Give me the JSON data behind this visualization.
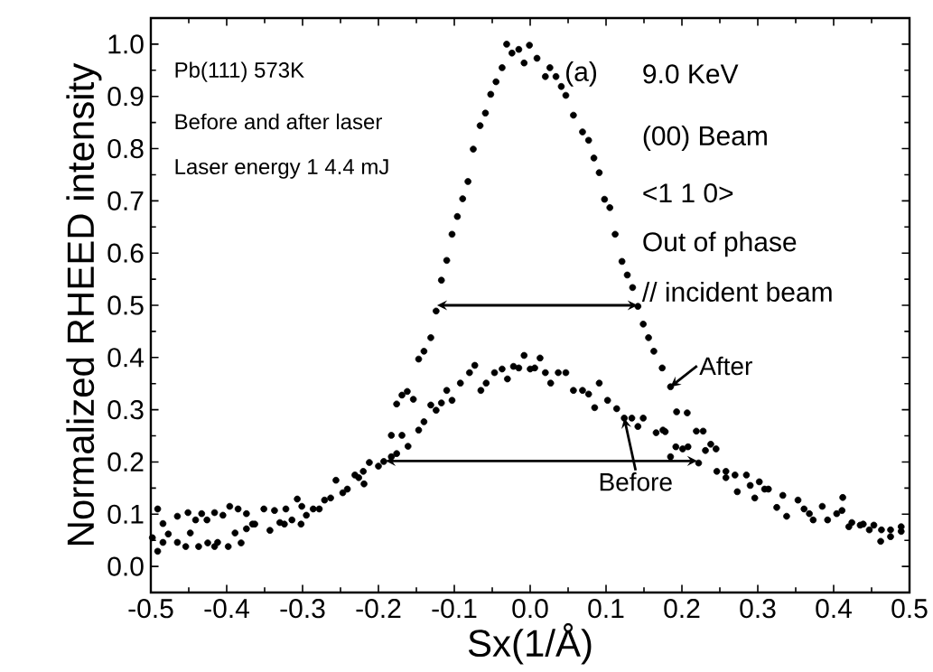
{
  "chart_data": {
    "type": "scatter",
    "xlabel": "Sx(1/Å)",
    "ylabel": "Normalized RHEED intensity",
    "xlim": [
      -0.5,
      0.5
    ],
    "ylim": [
      -0.05,
      1.05
    ],
    "xticks": [
      {
        "value": -0.5,
        "label": "-0.5"
      },
      {
        "value": -0.4,
        "label": "-0.4"
      },
      {
        "value": -0.3,
        "label": "-0.3"
      },
      {
        "value": -0.2,
        "label": "-0.2"
      },
      {
        "value": -0.1,
        "label": "-0.1"
      },
      {
        "value": 0,
        "label": "0.0"
      },
      {
        "value": 0.1,
        "label": "0.1"
      },
      {
        "value": 0.2,
        "label": "0.2"
      },
      {
        "value": 0.3,
        "label": "0.3"
      },
      {
        "value": 0.4,
        "label": "0.4"
      },
      {
        "value": 0.5,
        "label": "0.5"
      }
    ],
    "yticks": [
      {
        "value": 0,
        "label": "0.0"
      },
      {
        "value": 0.1,
        "label": "0.1"
      },
      {
        "value": 0.2,
        "label": "0.2"
      },
      {
        "value": 0.3,
        "label": "0.3"
      },
      {
        "value": 0.4,
        "label": "0.4"
      },
      {
        "value": 0.5,
        "label": "0.5"
      },
      {
        "value": 0.6,
        "label": "0.6"
      },
      {
        "value": 0.7,
        "label": "0.7"
      },
      {
        "value": 0.8,
        "label": "0.8"
      },
      {
        "value": 0.9,
        "label": "0.9"
      },
      {
        "value": 1,
        "label": "1.0"
      }
    ],
    "marker": "circle",
    "grid": false,
    "series": [
      {
        "color": "#000000",
        "x": [
          -0.498,
          -0.491,
          -0.484,
          -0.477,
          -0.465,
          -0.454,
          -0.448,
          -0.437,
          -0.425,
          -0.416,
          -0.412,
          -0.398,
          -0.389,
          -0.381,
          -0.374,
          -0.363,
          -0.343,
          -0.33,
          -0.324,
          -0.314,
          -0.302,
          -0.295,
          -0.278,
          -0.263,
          -0.247,
          -0.231,
          -0.22,
          -0.212,
          -0.193,
          -0.183,
          -0.176,
          -0.169,
          -0.162,
          -0.154,
          -0.147,
          -0.14,
          -0.131,
          -0.124,
          -0.117,
          -0.11,
          -0.103,
          -0.096,
          -0.089,
          -0.082,
          -0.075,
          -0.066,
          -0.059,
          -0.052,
          -0.045,
          -0.037,
          -0.031,
          -0.024,
          -0.015,
          -0.008,
          -0.001,
          0.009,
          0.02,
          0.026,
          0.034,
          0.041,
          0.047,
          0.057,
          0.069,
          0.077,
          0.084,
          0.091,
          0.098,
          0.105,
          0.112,
          0.121,
          0.128,
          0.135,
          0.142,
          0.149,
          0.156,
          0.163,
          0.174,
          0.185,
          0.193,
          0.207,
          0.219,
          0.228,
          0.246,
          0.258,
          0.27,
          0.285,
          0.302,
          0.314,
          0.333,
          0.353,
          0.368,
          0.385,
          0.404,
          0.412,
          0.424,
          0.439,
          0.453,
          0.463,
          0.475,
          0.489
        ],
        "values": [
          0.055,
          0.029,
          0.046,
          0.062,
          0.046,
          0.038,
          0.064,
          0.038,
          0.045,
          0.038,
          0.046,
          0.038,
          0.064,
          0.045,
          0.072,
          0.081,
          0.069,
          0.084,
          0.081,
          0.089,
          0.081,
          0.098,
          0.11,
          0.131,
          0.141,
          0.175,
          0.182,
          0.199,
          0.201,
          0.251,
          0.311,
          0.328,
          0.335,
          0.32,
          0.397,
          0.412,
          0.438,
          0.489,
          0.548,
          0.586,
          0.636,
          0.67,
          0.704,
          0.737,
          0.799,
          0.844,
          0.868,
          0.904,
          0.928,
          0.955,
          1.0,
          0.983,
          0.99,
          0.964,
          0.998,
          0.973,
          0.938,
          0.955,
          0.938,
          0.919,
          0.902,
          0.864,
          0.832,
          0.816,
          0.782,
          0.754,
          0.703,
          0.687,
          0.636,
          0.584,
          0.558,
          0.534,
          0.498,
          0.464,
          0.438,
          0.412,
          0.38,
          0.344,
          0.296,
          0.294,
          0.259,
          0.259,
          0.182,
          0.17,
          0.175,
          0.175,
          0.162,
          0.148,
          0.136,
          0.127,
          0.101,
          0.115,
          0.101,
          0.132,
          0.084,
          0.081,
          0.079,
          0.07,
          0.07,
          0.076
        ]
      },
      {
        "color": "#000000",
        "x": [
          -0.491,
          -0.484,
          -0.465,
          -0.451,
          -0.441,
          -0.433,
          -0.426,
          -0.416,
          -0.405,
          -0.396,
          -0.385,
          -0.374,
          -0.366,
          -0.351,
          -0.337,
          -0.322,
          -0.307,
          -0.301,
          -0.286,
          -0.271,
          -0.256,
          -0.241,
          -0.226,
          -0.219,
          -0.2,
          -0.183,
          -0.176,
          -0.169,
          -0.161,
          -0.147,
          -0.14,
          -0.131,
          -0.124,
          -0.117,
          -0.11,
          -0.103,
          -0.092,
          -0.08,
          -0.073,
          -0.065,
          -0.058,
          -0.047,
          -0.037,
          -0.03,
          -0.022,
          -0.015,
          -0.008,
          0.0,
          0.006,
          0.013,
          0.02,
          0.027,
          0.037,
          0.047,
          0.057,
          0.069,
          0.077,
          0.085,
          0.091,
          0.102,
          0.114,
          0.124,
          0.134,
          0.142,
          0.149,
          0.166,
          0.175,
          0.178,
          0.185,
          0.192,
          0.201,
          0.208,
          0.222,
          0.231,
          0.238,
          0.245,
          0.258,
          0.273,
          0.29,
          0.296,
          0.309,
          0.325,
          0.338,
          0.361,
          0.373,
          0.392,
          0.411,
          0.42,
          0.435,
          0.447,
          0.462,
          0.475,
          0.489
        ],
        "values": [
          0.11,
          0.082,
          0.096,
          0.103,
          0.089,
          0.101,
          0.089,
          0.103,
          0.098,
          0.115,
          0.11,
          0.101,
          0.081,
          0.11,
          0.107,
          0.11,
          0.129,
          0.115,
          0.11,
          0.127,
          0.165,
          0.148,
          0.17,
          0.158,
          0.192,
          0.21,
          0.216,
          0.251,
          0.23,
          0.261,
          0.277,
          0.309,
          0.299,
          0.313,
          0.337,
          0.318,
          0.351,
          0.371,
          0.385,
          0.337,
          0.351,
          0.371,
          0.378,
          0.359,
          0.383,
          0.38,
          0.404,
          0.378,
          0.38,
          0.399,
          0.371,
          0.351,
          0.371,
          0.371,
          0.337,
          0.337,
          0.33,
          0.304,
          0.351,
          0.318,
          0.302,
          0.284,
          0.284,
          0.268,
          0.284,
          0.256,
          0.261,
          0.258,
          0.21,
          0.229,
          0.225,
          0.229,
          0.198,
          0.222,
          0.234,
          0.225,
          0.182,
          0.143,
          0.155,
          0.131,
          0.148,
          0.113,
          0.096,
          0.11,
          0.089,
          0.089,
          0.107,
          0.076,
          0.079,
          0.07,
          0.048,
          0.057,
          0.067
        ]
      }
    ],
    "annotations": [
      "Pb(111)  573K",
      "Before and after laser",
      "Laser energy 1 4.4 mJ",
      "(a)",
      "9.0 KeV",
      "(00) Beam",
      "<1 1 0>",
      "Out of phase",
      "// incident beam",
      {
        "text": "After",
        "x": 0.185,
        "y": 0.344
      },
      {
        "text": "Before",
        "x": 0.124,
        "y": 0.284
      }
    ]
  }
}
